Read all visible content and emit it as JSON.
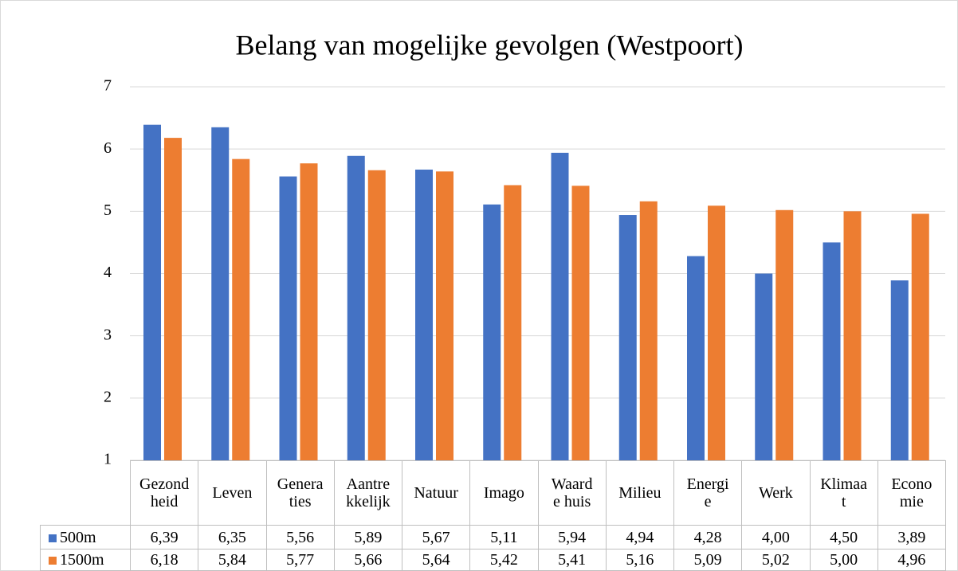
{
  "chart_data": {
    "type": "bar",
    "title": "Belang van mogelijke gevolgen (Westpoort)",
    "categories": [
      "Gezond\nheid",
      "Leven",
      "Genera\nties",
      "Aantre\nkkelijk",
      "Natuur",
      "Imago",
      "Waard\ne huis",
      "Milieu",
      "Energi\ne",
      "Werk",
      "Klimaa\nt",
      "Econo\nmie"
    ],
    "series": [
      {
        "name": "500m",
        "color": "#4472c4",
        "values": [
          6.39,
          6.35,
          5.56,
          5.89,
          5.67,
          5.11,
          5.94,
          4.94,
          4.28,
          4.0,
          4.5,
          3.89
        ],
        "value_labels": [
          "6,39",
          "6,35",
          "5,56",
          "5,89",
          "5,67",
          "5,11",
          "5,94",
          "4,94",
          "4,28",
          "4,00",
          "4,50",
          "3,89"
        ]
      },
      {
        "name": "1500m",
        "color": "#ed7d31",
        "values": [
          6.18,
          5.84,
          5.77,
          5.66,
          5.64,
          5.42,
          5.41,
          5.16,
          5.09,
          5.02,
          5.0,
          4.96
        ],
        "value_labels": [
          "6,18",
          "5,84",
          "5,77",
          "5,66",
          "5,64",
          "5,42",
          "5,41",
          "5,16",
          "5,09",
          "5,02",
          "5,00",
          "4,96"
        ]
      }
    ],
    "ylim": [
      1,
      7
    ],
    "yticks": [
      1,
      2,
      3,
      4,
      5,
      6,
      7
    ],
    "grid": true
  }
}
